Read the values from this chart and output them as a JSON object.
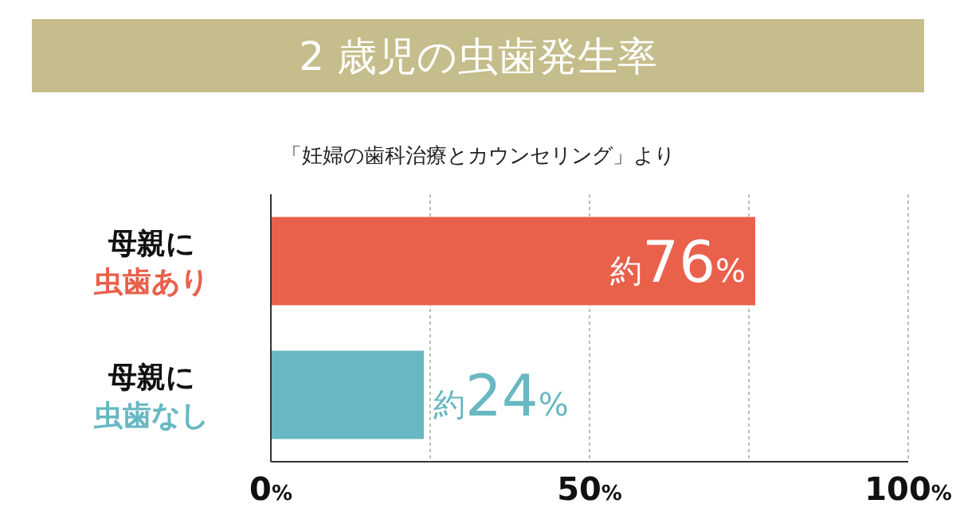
{
  "chart_data": {
    "type": "bar",
    "orientation": "horizontal",
    "title": "2 歳児の虫歯発生率",
    "subtitle": "「妊婦の歯科治療とカウンセリング」より",
    "categories": [
      "母親に虫歯あり",
      "母親に虫歯なし"
    ],
    "values": [
      76,
      24
    ],
    "colors": [
      "#e9604b",
      "#67b8c2"
    ],
    "value_labels": [
      "約76%",
      "約24%"
    ],
    "xlim": [
      0,
      100
    ],
    "xticks": [
      {
        "value": 0,
        "label": "0%"
      },
      {
        "value": 25,
        "label": null
      },
      {
        "value": 50,
        "label": "50%"
      },
      {
        "value": 75,
        "label": null
      },
      {
        "value": 100,
        "label": "100%"
      }
    ],
    "grid": "x"
  }
}
